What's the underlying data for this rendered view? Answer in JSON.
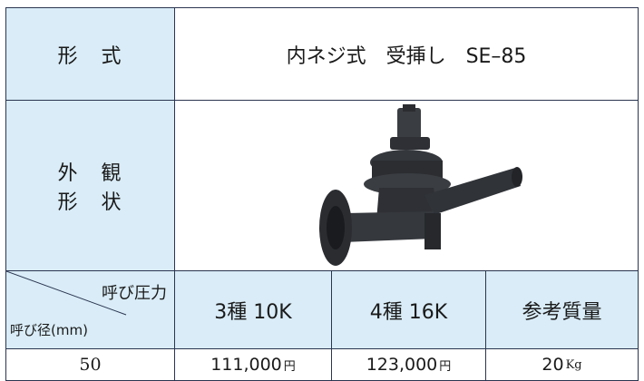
{
  "table": {
    "type_label": "形　式",
    "type_value": "内ネジ式　受挿し　SE–85",
    "appearance_label": [
      "外　観",
      "形　状"
    ],
    "header": {
      "pressure": "呼び圧力",
      "diameter": "呼び径(mm)",
      "columns": [
        "3種  10K",
        "4種  16K",
        "参考質量"
      ]
    },
    "rows": [
      {
        "size": "50",
        "prices": [
          "111,000",
          "123,000"
        ],
        "price_unit": "円",
        "weight": "20",
        "weight_unit": "Kg"
      }
    ]
  }
}
